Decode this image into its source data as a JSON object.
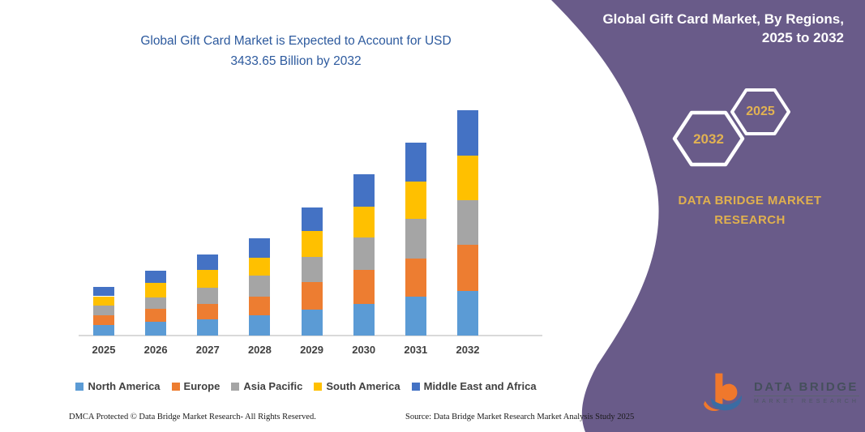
{
  "title": {
    "line1": "Global Gift Card Market is Expected to Account for USD",
    "line2": "3433.65 Billion by 2032"
  },
  "panel": {
    "heading1": "Global Gift Card Market, By Regions,",
    "heading2": "2025 to 2032",
    "hex_large": "2032",
    "hex_small": "2025",
    "brand1": "DATA BRIDGE MARKET",
    "brand2": "RESEARCH",
    "background_color": "#695b89",
    "accent_gold": "#e0b04e"
  },
  "logo": {
    "top": "DATA BRIDGE",
    "bottom": "MARKET RESEARCH"
  },
  "footer": {
    "left": "DMCA Protected © Data Bridge Market Research-  All Rights Reserved.",
    "right": "Source: Data Bridge Market Research  Market Analysis Study 2025"
  },
  "chart_data": {
    "type": "bar",
    "stacked": true,
    "title": "Global Gift Card Market is Expected to Account for USD 3433.65 Billion by 2032",
    "unit": "USD Billion (estimated from bar heights; 2032 total = 3433.65)",
    "categories": [
      "2025",
      "2026",
      "2027",
      "2028",
      "2029",
      "2030",
      "2031",
      "2032"
    ],
    "series": [
      {
        "name": "North America",
        "color": "#5B9BD5",
        "values": [
          157,
          210,
          251,
          309,
          399,
          486,
          589,
          680
        ]
      },
      {
        "name": "Europe",
        "color": "#ED7D31",
        "values": [
          157,
          194,
          235,
          280,
          412,
          515,
          589,
          704
        ]
      },
      {
        "name": "Asia Pacific",
        "color": "#A5A5A5",
        "values": [
          145,
          182,
          247,
          330,
          387,
          494,
          597,
          680
        ]
      },
      {
        "name": "South America",
        "color": "#FFC000",
        "values": [
          140,
          219,
          268,
          268,
          399,
          473,
          577,
          677
        ]
      },
      {
        "name": "Middle East and Africa",
        "color": "#4472C4",
        "values": [
          145,
          177,
          235,
          300,
          358,
          486,
          593,
          693
        ]
      }
    ],
    "totals": [
      744,
      982,
      1236,
      1487,
      1955,
      2454,
      2945,
      3434
    ],
    "ylim": [
      0,
      3600
    ],
    "grid": false,
    "legend_position": "bottom"
  }
}
